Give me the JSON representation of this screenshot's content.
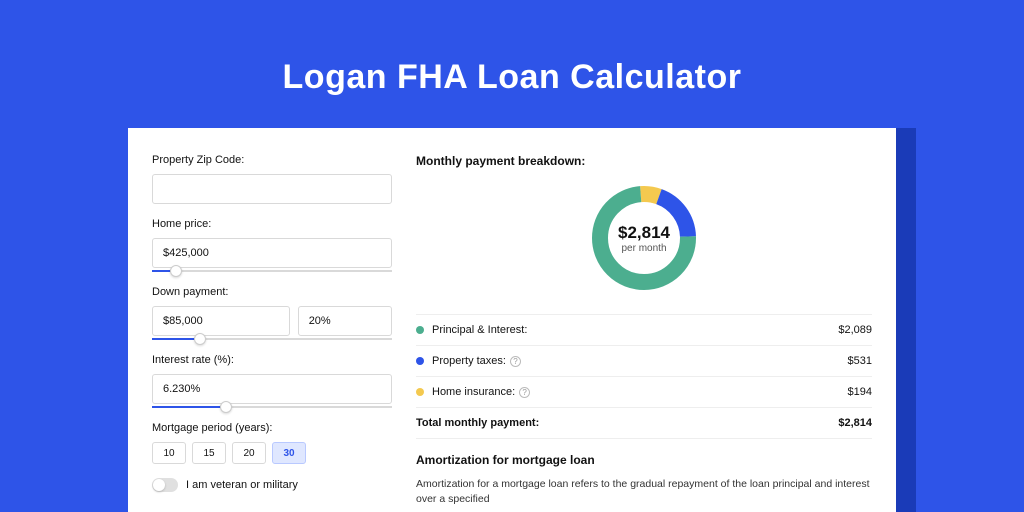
{
  "page": {
    "title": "Logan FHA Loan Calculator",
    "background_color": "#2e54e8",
    "card_shadow_color": "#1a3bb8"
  },
  "form": {
    "zip": {
      "label": "Property Zip Code:",
      "value": ""
    },
    "home_price": {
      "label": "Home price:",
      "value": "$425,000",
      "slider_pct": 10
    },
    "down_payment": {
      "label": "Down payment:",
      "value": "$85,000",
      "pct_value": "20%",
      "slider_pct": 20
    },
    "interest": {
      "label": "Interest rate (%):",
      "value": "6.230%",
      "slider_pct": 31
    },
    "period": {
      "label": "Mortgage period (years):",
      "options": [
        "10",
        "15",
        "20",
        "30"
      ],
      "selected": "30"
    },
    "veteran": {
      "label": "I am veteran or military",
      "on": false
    }
  },
  "breakdown": {
    "title": "Monthly payment breakdown:",
    "center_amount": "$2,814",
    "center_sub": "per month",
    "items": [
      {
        "label": "Principal & Interest:",
        "value": "$2,089",
        "color": "#4cae8f",
        "pct": 74.2,
        "help": false
      },
      {
        "label": "Property taxes:",
        "value": "$531",
        "color": "#2e54e8",
        "pct": 18.9,
        "help": true
      },
      {
        "label": "Home insurance:",
        "value": "$194",
        "color": "#f4c94f",
        "pct": 6.9,
        "help": true
      }
    ],
    "total": {
      "label": "Total monthly payment:",
      "value": "$2,814"
    }
  },
  "amort": {
    "title": "Amortization for mortgage loan",
    "body": "Amortization for a mortgage loan refers to the gradual repayment of the loan principal and interest over a specified"
  },
  "chart_style": {
    "type": "donut",
    "stroke_width": 16,
    "radius": 44,
    "bg": "#ffffff"
  }
}
